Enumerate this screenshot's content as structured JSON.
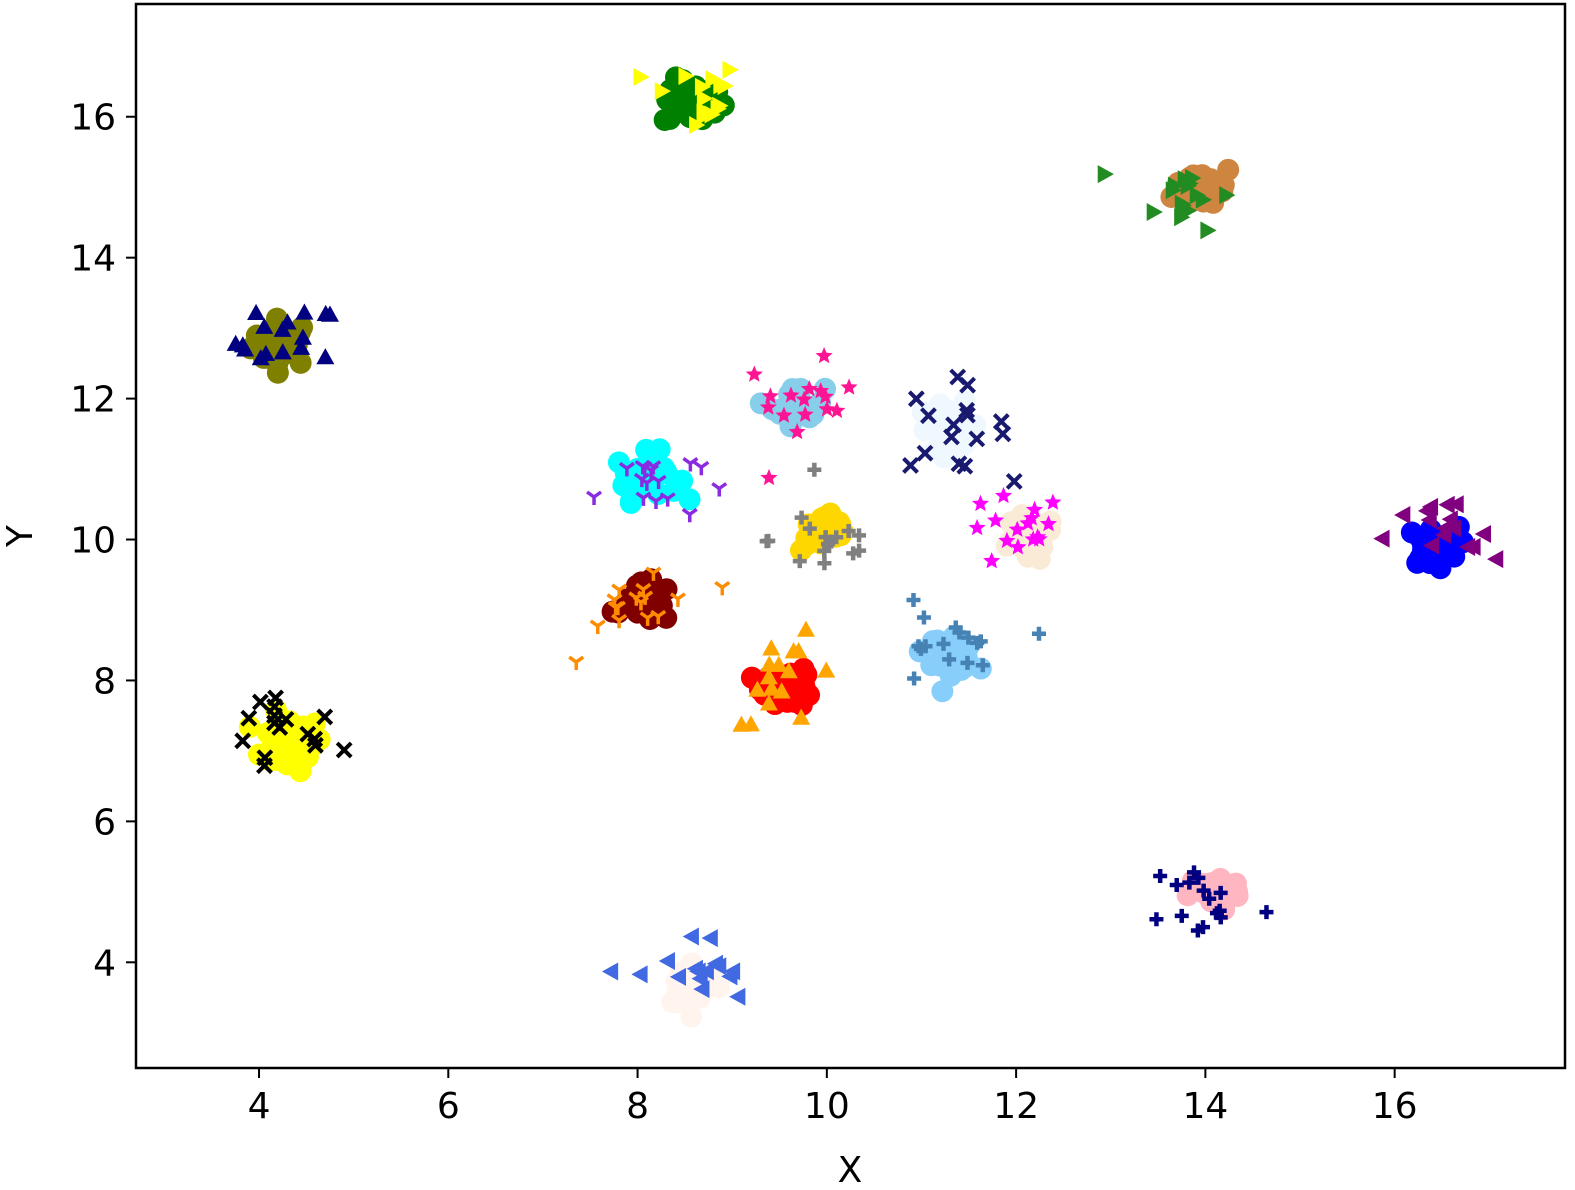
{
  "chart_data": {
    "type": "scatter",
    "title": "",
    "xlabel": "X",
    "ylabel": "Y",
    "xlim": [
      2.7,
      17.8
    ],
    "ylim": [
      2.5,
      17.6
    ],
    "xticks": [
      4,
      6,
      8,
      10,
      12,
      14,
      16
    ],
    "yticks": [
      4,
      6,
      8,
      10,
      12,
      14,
      16
    ],
    "xtick_labels": [
      "4",
      "6",
      "8",
      "10",
      "12",
      "14",
      "16"
    ],
    "ytick_labels": [
      "4",
      "6",
      "8",
      "10",
      "12",
      "14",
      "16"
    ],
    "grid": false,
    "legend": "none",
    "clusters": [
      {
        "marker": "circle",
        "color": "#808000",
        "center": [
          4.25,
          12.8
        ],
        "spread": 0.3
      },
      {
        "marker": "triangle-up",
        "color": "#000080",
        "center": [
          4.3,
          12.8
        ],
        "spread": 0.5
      },
      {
        "marker": "circle",
        "color": "#ffff00",
        "center": [
          4.3,
          7.1
        ],
        "spread": 0.35
      },
      {
        "marker": "x",
        "color": "#000000",
        "center": [
          4.2,
          7.2
        ],
        "spread": 0.6
      },
      {
        "marker": "circle",
        "color": "#008000",
        "center": [
          8.6,
          16.2
        ],
        "spread": 0.3
      },
      {
        "marker": "triangle-right",
        "color": "#ffff00",
        "center": [
          8.6,
          16.3
        ],
        "spread": 0.45
      },
      {
        "marker": "circle",
        "color": "#cd853f",
        "center": [
          14.0,
          15.0
        ],
        "spread": 0.3
      },
      {
        "marker": "triangle-right",
        "color": "#228b22",
        "center": [
          13.8,
          14.9
        ],
        "spread": 0.45
      },
      {
        "marker": "circle",
        "color": "#00ffff",
        "center": [
          8.1,
          10.9
        ],
        "spread": 0.3
      },
      {
        "marker": "tri",
        "color": "#8a2be2",
        "center": [
          8.1,
          10.8
        ],
        "spread": 0.5
      },
      {
        "marker": "circle",
        "color": "#87ceeb",
        "center": [
          9.7,
          11.9
        ],
        "spread": 0.25
      },
      {
        "marker": "star",
        "color": "#ff1493",
        "center": [
          9.7,
          11.9
        ],
        "spread": 0.55
      },
      {
        "marker": "circle",
        "color": "#f0f8ff",
        "center": [
          11.3,
          11.6
        ],
        "spread": 0.3
      },
      {
        "marker": "x",
        "color": "#191970",
        "center": [
          11.3,
          11.6
        ],
        "spread": 0.55
      },
      {
        "marker": "circle",
        "color": "#ffd700",
        "center": [
          10.0,
          10.1
        ],
        "spread": 0.25
      },
      {
        "marker": "plus",
        "color": "#808080",
        "center": [
          10.0,
          10.0
        ],
        "spread": 0.55
      },
      {
        "marker": "circle",
        "color": "#faebd7",
        "center": [
          12.1,
          10.0
        ],
        "spread": 0.3
      },
      {
        "marker": "star",
        "color": "#ff00ff",
        "center": [
          12.0,
          10.1
        ],
        "spread": 0.5
      },
      {
        "marker": "circle",
        "color": "#800000",
        "center": [
          8.1,
          9.1
        ],
        "spread": 0.25
      },
      {
        "marker": "tri",
        "color": "#ff8c00",
        "center": [
          8.1,
          9.1
        ],
        "spread": 0.6
      },
      {
        "marker": "circle",
        "color": "#ff0000",
        "center": [
          9.6,
          7.9
        ],
        "spread": 0.25
      },
      {
        "marker": "triangle-up",
        "color": "#ffa500",
        "center": [
          9.6,
          8.0
        ],
        "spread": 0.55
      },
      {
        "marker": "circle",
        "color": "#87cefa",
        "center": [
          11.3,
          8.4
        ],
        "spread": 0.25
      },
      {
        "marker": "plus",
        "color": "#4682b4",
        "center": [
          11.2,
          8.4
        ],
        "spread": 0.6
      },
      {
        "marker": "circle",
        "color": "#0000ff",
        "center": [
          16.4,
          9.9
        ],
        "spread": 0.25
      },
      {
        "marker": "triangle-left",
        "color": "#800080",
        "center": [
          16.5,
          10.0
        ],
        "spread": 0.55
      },
      {
        "marker": "circle",
        "color": "#ffb6c1",
        "center": [
          14.1,
          5.0
        ],
        "spread": 0.25
      },
      {
        "marker": "plus",
        "color": "#000080",
        "center": [
          14.0,
          4.9
        ],
        "spread": 0.55
      },
      {
        "marker": "circle",
        "color": "#fff5ee",
        "center": [
          8.6,
          3.7
        ],
        "spread": 0.3
      },
      {
        "marker": "triangle-left",
        "color": "#4169e1",
        "center": [
          8.6,
          3.8
        ],
        "spread": 0.55
      }
    ]
  }
}
